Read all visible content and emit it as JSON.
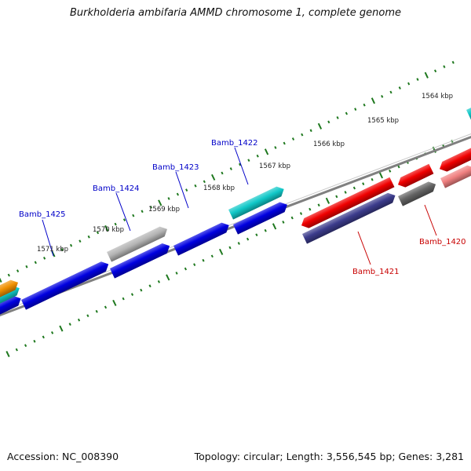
{
  "title": "Burkholderia ambifaria AMMD chromosome 1, complete genome",
  "footer": {
    "accession": "Accession: NC_008390",
    "summary": "Topology: circular; Length: 3,556,545 bp; Genes: 3,281"
  },
  "ruler_labels": [
    {
      "kbp": 1564,
      "text": "1564 kbp"
    },
    {
      "kbp": 1565,
      "text": "1565 kbp"
    },
    {
      "kbp": 1566,
      "text": "1566 kbp"
    },
    {
      "kbp": 1567,
      "text": "1567 kbp"
    },
    {
      "kbp": 1568,
      "text": "1568 kbp"
    },
    {
      "kbp": 1569,
      "text": "1569 kbp"
    },
    {
      "kbp": 1570,
      "text": "1570 kbp"
    },
    {
      "kbp": 1571,
      "text": "1571 kbp"
    }
  ],
  "gene_labels": [
    {
      "text": "Bamb_1425",
      "color": "#0000c8"
    },
    {
      "text": "Bamb_1424",
      "color": "#0000c8"
    },
    {
      "text": "Bamb_1423",
      "color": "#0000c8"
    },
    {
      "text": "Bamb_1422",
      "color": "#0000c8"
    },
    {
      "text": "Bamb_1421",
      "color": "#c80000"
    },
    {
      "text": "Bamb_1420",
      "color": "#c80000"
    }
  ],
  "colors": {
    "blue": "#0000e0",
    "cyan": "#10c8c8",
    "gray": "#b4b4b4",
    "red": "#f00000",
    "purple": "#3c3c8c",
    "darkgray": "#646464",
    "pink": "#f08080",
    "orange": "#f09000",
    "backbone": "#808080",
    "tick": "#1e781e"
  }
}
